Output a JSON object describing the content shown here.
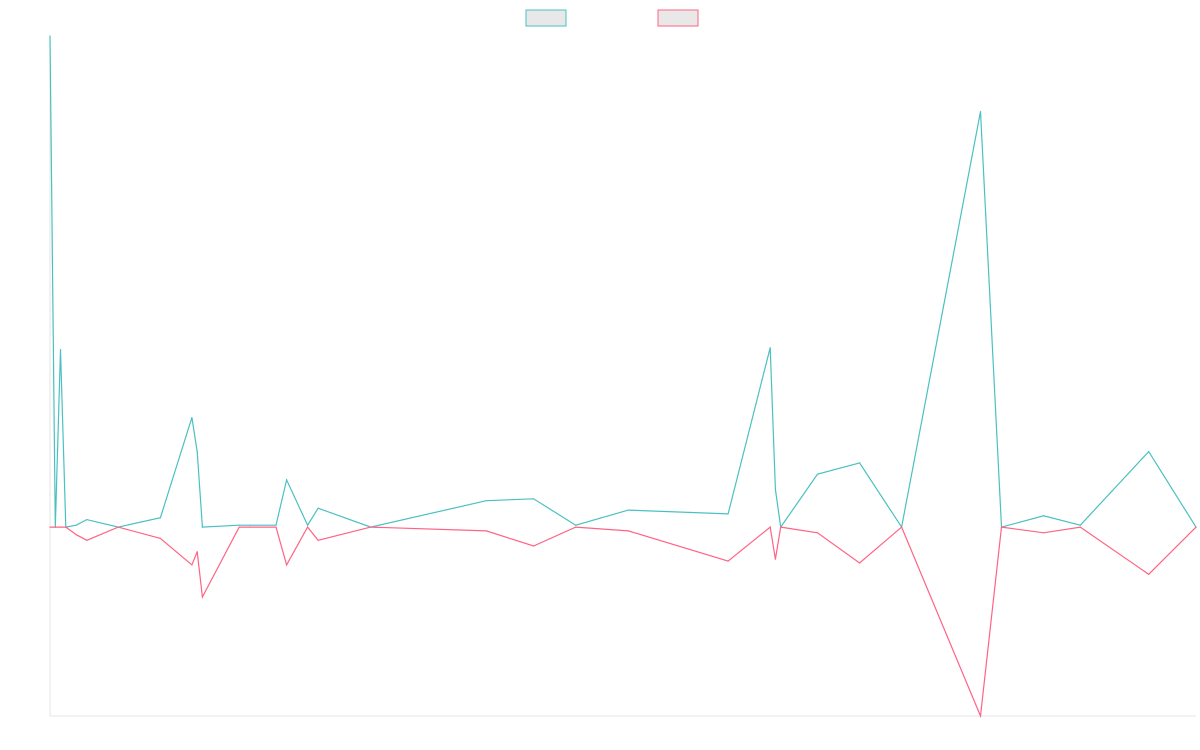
{
  "chart_data": {
    "type": "line",
    "title": "",
    "xlabel": "",
    "ylabel": "",
    "legend_placement": "top-center",
    "grid": false,
    "ylim": [
      -100,
      260
    ],
    "baseline": 0,
    "series": [
      {
        "color": "#4bc0c0",
        "fill": "#e8e8e8",
        "points": [
          [
            0,
            260
          ],
          [
            1,
            0
          ],
          [
            2,
            94
          ],
          [
            3,
            0
          ],
          [
            5,
            1
          ],
          [
            7,
            4
          ],
          [
            13,
            0
          ],
          [
            21,
            5
          ],
          [
            27,
            58
          ],
          [
            28,
            40
          ],
          [
            29,
            0
          ],
          [
            36,
            1
          ],
          [
            38,
            1
          ],
          [
            43,
            1
          ],
          [
            45,
            25
          ],
          [
            49,
            1
          ],
          [
            51,
            10
          ],
          [
            61,
            0
          ],
          [
            83,
            14
          ],
          [
            92,
            15
          ],
          [
            100,
            1
          ],
          [
            110,
            9
          ],
          [
            129,
            7
          ],
          [
            137,
            95
          ],
          [
            138,
            20
          ],
          [
            139,
            0
          ],
          [
            146,
            28
          ],
          [
            154,
            34
          ],
          [
            162,
            0
          ],
          [
            177,
            220
          ],
          [
            181,
            0
          ],
          [
            189,
            6
          ],
          [
            196,
            1
          ],
          [
            209,
            40
          ],
          [
            218,
            0
          ]
        ]
      },
      {
        "color": "#ff6384",
        "fill": "#e8e8e8",
        "points": [
          [
            0,
            0
          ],
          [
            1,
            0
          ],
          [
            2,
            0
          ],
          [
            3,
            0
          ],
          [
            5,
            -4
          ],
          [
            7,
            -7
          ],
          [
            13,
            0
          ],
          [
            21,
            -6
          ],
          [
            27,
            -20
          ],
          [
            28,
            -13
          ],
          [
            29,
            -37
          ],
          [
            36,
            0
          ],
          [
            38,
            0
          ],
          [
            43,
            0
          ],
          [
            45,
            -20
          ],
          [
            49,
            0
          ],
          [
            51,
            -7
          ],
          [
            61,
            0
          ],
          [
            83,
            -2
          ],
          [
            92,
            -10
          ],
          [
            100,
            0
          ],
          [
            110,
            -2
          ],
          [
            129,
            -18
          ],
          [
            137,
            0
          ],
          [
            138,
            -17
          ],
          [
            139,
            0
          ],
          [
            146,
            -3
          ],
          [
            154,
            -19
          ],
          [
            162,
            0
          ],
          [
            177,
            -100
          ],
          [
            181,
            0
          ],
          [
            189,
            -3
          ],
          [
            196,
            0
          ],
          [
            209,
            -25
          ],
          [
            218,
            0
          ]
        ]
      }
    ],
    "x_range": [
      0,
      218
    ]
  }
}
